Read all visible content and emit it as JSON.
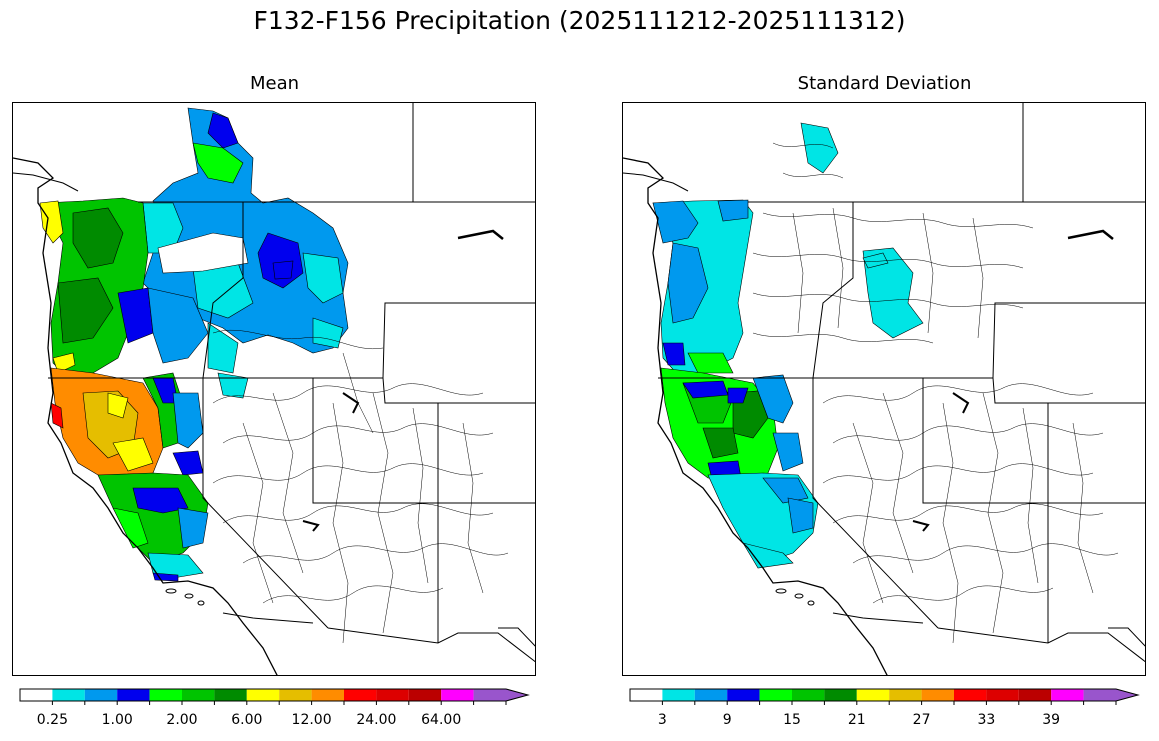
{
  "title": "F132-F156 Precipitation (2025111212-2025111312)",
  "panels": [
    {
      "id": "mean",
      "title": "Mean",
      "colorbar": {
        "colors": [
          "#ffffff",
          "#00e5e5",
          "#0099ee",
          "#0000ee",
          "#00ff00",
          "#00c400",
          "#008b00",
          "#ffff00",
          "#e5be00",
          "#ff8c00",
          "#ff0000",
          "#dd0000",
          "#bb0000",
          "#ff00ff",
          "#9955cc"
        ],
        "tick_labels": [
          "0.25",
          "1.00",
          "2.00",
          "6.00",
          "12.00",
          "24.00",
          "64.00"
        ]
      }
    },
    {
      "id": "stddev",
      "title": "Standard Deviation",
      "colorbar": {
        "colors": [
          "#ffffff",
          "#00e5e5",
          "#0099ee",
          "#0000ee",
          "#00ff00",
          "#00c400",
          "#008b00",
          "#ffff00",
          "#e5be00",
          "#ff8c00",
          "#ff0000",
          "#dd0000",
          "#bb0000",
          "#ff00ff",
          "#9955cc"
        ],
        "tick_labels": [
          "3",
          "9",
          "15",
          "21",
          "27",
          "33",
          "39"
        ]
      }
    }
  ]
}
